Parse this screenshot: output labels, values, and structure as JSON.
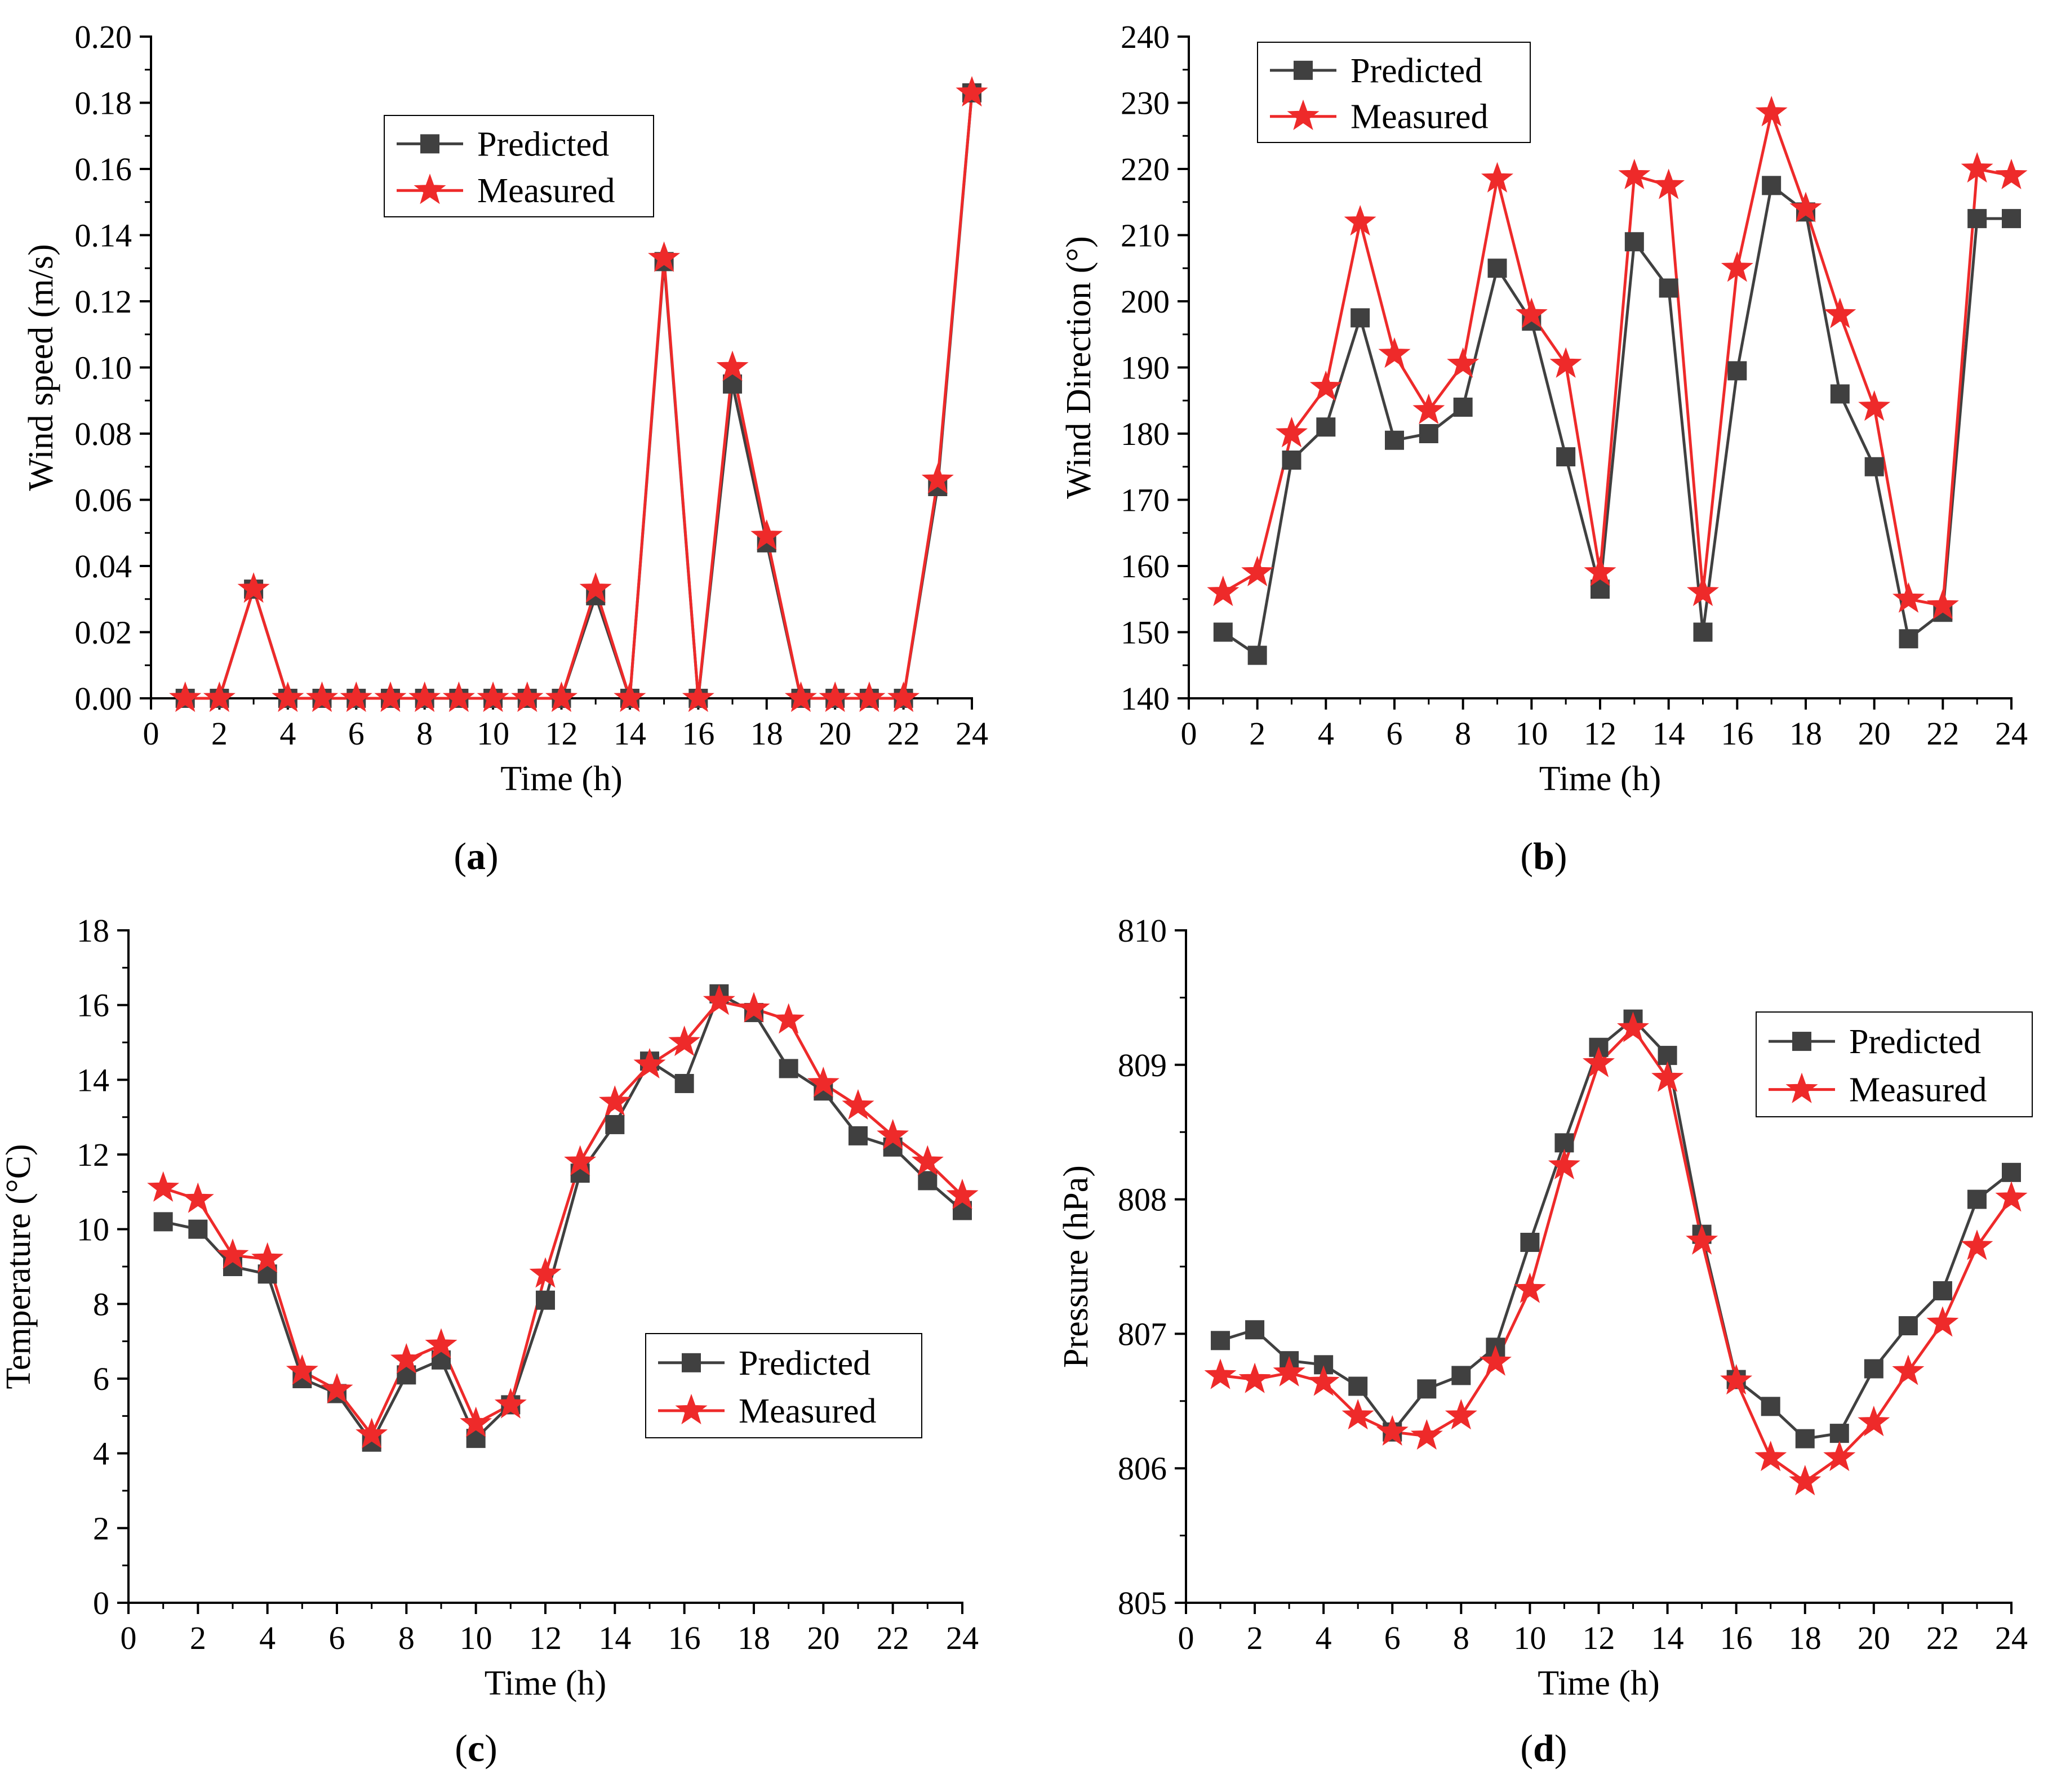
{
  "colors": {
    "predicted": "#404040",
    "measured": "#ee2a2a",
    "axis": "#000000"
  },
  "chart_data": [
    {
      "type": "line",
      "panel": "a",
      "caption_letter": "a",
      "xlabel": "Time (h)",
      "ylabel": "Wind speed (m/s)",
      "xlim": [
        0,
        24
      ],
      "ylim": [
        0,
        0.2
      ],
      "x_ticks": [
        "0",
        "2",
        "4",
        "6",
        "8",
        "10",
        "12",
        "14",
        "16",
        "18",
        "20",
        "22",
        "24"
      ],
      "y_ticks": [
        "0.00",
        "0.02",
        "0.04",
        "0.06",
        "0.08",
        "0.10",
        "0.12",
        "0.14",
        "0.16",
        "0.18",
        "0.20"
      ],
      "legend_placement": "upper-center",
      "x": [
        1,
        2,
        3,
        4,
        5,
        6,
        7,
        8,
        9,
        10,
        11,
        12,
        13,
        14,
        15,
        16,
        17,
        18,
        19,
        20,
        21,
        22,
        23,
        24
      ],
      "series": [
        {
          "name": "Predicted",
          "marker": "square",
          "values": [
            0,
            0,
            0.033,
            0,
            0,
            0,
            0,
            0,
            0,
            0,
            0,
            0,
            0.031,
            0,
            0.132,
            0,
            0.095,
            0.047,
            0,
            0,
            0,
            0,
            0.064,
            0.183
          ]
        },
        {
          "name": "Measured",
          "marker": "star",
          "values": [
            0,
            0,
            0.033,
            0,
            0,
            0,
            0,
            0,
            0,
            0,
            0,
            0,
            0.033,
            0,
            0.133,
            0,
            0.1,
            0.049,
            0,
            0,
            0,
            0,
            0.066,
            0.183
          ]
        }
      ]
    },
    {
      "type": "line",
      "panel": "b",
      "caption_letter": "b",
      "xlabel": "Time (h)",
      "ylabel": "Wind Direction (°)",
      "xlim": [
        0,
        24
      ],
      "ylim": [
        140,
        240
      ],
      "x_ticks": [
        "0",
        "2",
        "4",
        "6",
        "8",
        "10",
        "12",
        "14",
        "16",
        "18",
        "20",
        "22",
        "24"
      ],
      "y_ticks": [
        "140",
        "150",
        "160",
        "170",
        "180",
        "190",
        "200",
        "210",
        "220",
        "230",
        "240"
      ],
      "legend_placement": "top-left",
      "x": [
        1,
        2,
        3,
        4,
        5,
        6,
        7,
        8,
        9,
        10,
        11,
        12,
        13,
        14,
        15,
        16,
        17,
        18,
        19,
        20,
        21,
        22,
        23,
        24
      ],
      "series": [
        {
          "name": "Predicted",
          "marker": "square",
          "values": [
            150,
            146.5,
            176,
            181,
            197.5,
            179,
            180,
            184,
            205,
            197,
            176.5,
            156.5,
            209,
            202,
            150,
            189.5,
            217.5,
            213.5,
            186,
            175,
            149,
            153,
            212.5,
            212.5
          ]
        },
        {
          "name": "Measured",
          "marker": "star",
          "values": [
            156,
            159,
            180,
            187,
            212,
            192,
            183.5,
            190.5,
            218.5,
            198,
            190.5,
            159,
            219,
            217.5,
            156,
            205,
            228.5,
            214,
            198,
            184,
            155,
            154,
            220,
            219
          ]
        }
      ]
    },
    {
      "type": "line",
      "panel": "c",
      "caption_letter": "c",
      "xlabel": "Time (h)",
      "ylabel": "Temperature (°C)",
      "xlim": [
        0,
        24
      ],
      "ylim": [
        0,
        18
      ],
      "x_ticks": [
        "0",
        "2",
        "4",
        "6",
        "8",
        "10",
        "12",
        "14",
        "16",
        "18",
        "20",
        "22",
        "24"
      ],
      "y_ticks": [
        "0",
        "2",
        "4",
        "6",
        "8",
        "10",
        "12",
        "14",
        "16",
        "18"
      ],
      "legend_placement": "center-right",
      "x": [
        1,
        2,
        3,
        4,
        5,
        6,
        7,
        8,
        9,
        10,
        11,
        12,
        13,
        14,
        15,
        16,
        17,
        18,
        19,
        20,
        21,
        22,
        23,
        24
      ],
      "series": [
        {
          "name": "Predicted",
          "marker": "square",
          "values": [
            10.2,
            10.0,
            9.0,
            8.8,
            6.0,
            5.6,
            4.3,
            6.1,
            6.5,
            4.4,
            5.3,
            8.1,
            11.5,
            12.8,
            14.5,
            13.9,
            16.3,
            15.8,
            14.3,
            13.7,
            12.5,
            12.2,
            11.3,
            10.5
          ]
        },
        {
          "name": "Measured",
          "marker": "star",
          "values": [
            11.1,
            10.8,
            9.3,
            9.2,
            6.2,
            5.7,
            4.5,
            6.5,
            6.9,
            4.8,
            5.3,
            8.8,
            11.8,
            13.4,
            14.4,
            15.0,
            16.1,
            15.9,
            15.6,
            13.9,
            13.3,
            12.5,
            11.8,
            10.9
          ]
        }
      ]
    },
    {
      "type": "line",
      "panel": "d",
      "caption_letter": "d",
      "xlabel": "Time (h)",
      "ylabel": "Pressure (hPa)",
      "xlim": [
        0,
        24
      ],
      "ylim": [
        805,
        810
      ],
      "x_ticks": [
        "0",
        "2",
        "4",
        "6",
        "8",
        "10",
        "12",
        "14",
        "16",
        "18",
        "20",
        "22",
        "24"
      ],
      "y_ticks": [
        "805",
        "806",
        "807",
        "808",
        "809",
        "810"
      ],
      "legend_placement": "top-right",
      "x": [
        1,
        2,
        3,
        4,
        5,
        6,
        7,
        8,
        9,
        10,
        11,
        12,
        13,
        14,
        15,
        16,
        17,
        18,
        19,
        20,
        21,
        22,
        23,
        24
      ],
      "series": [
        {
          "name": "Predicted",
          "marker": "square",
          "values": [
            806.95,
            807.03,
            806.8,
            806.77,
            806.61,
            806.27,
            806.59,
            806.69,
            806.9,
            807.68,
            808.42,
            809.13,
            809.34,
            809.07,
            807.74,
            806.66,
            806.46,
            806.22,
            806.26,
            806.74,
            807.06,
            807.32,
            808.0,
            808.2
          ]
        },
        {
          "name": "Measured",
          "marker": "star",
          "values": [
            806.69,
            806.66,
            806.71,
            806.64,
            806.39,
            806.27,
            806.24,
            806.39,
            806.79,
            807.33,
            808.25,
            809.01,
            809.27,
            808.9,
            807.69,
            806.65,
            806.08,
            805.9,
            806.08,
            806.34,
            806.72,
            807.08,
            807.65,
            808.01
          ]
        }
      ]
    }
  ]
}
